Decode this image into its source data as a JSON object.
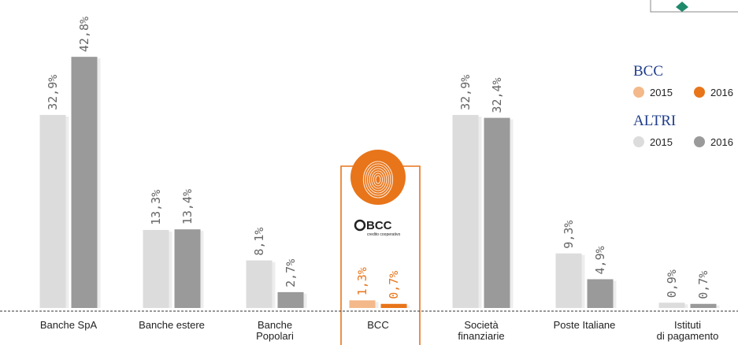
{
  "chart_data": {
    "type": "bar",
    "categories": [
      [
        "Banche SpA"
      ],
      [
        "Banche estere"
      ],
      [
        "Banche",
        "Popolari"
      ],
      [
        "BCC"
      ],
      [
        "Società",
        "finanziarie"
      ],
      [
        "Poste Italiane"
      ],
      [
        "Istituti",
        "di pagamento"
      ]
    ],
    "series": [
      {
        "name": "2015",
        "values": [
          32.9,
          13.3,
          8.1,
          1.3,
          32.9,
          9.3,
          0.9
        ],
        "labels": [
          "32,9%",
          "13,3%",
          "8,1%",
          "1,3%",
          "32,9%",
          "9,3%",
          "0,9%"
        ]
      },
      {
        "name": "2016",
        "values": [
          42.8,
          13.4,
          2.7,
          0.7,
          32.4,
          4.9,
          0.7
        ],
        "labels": [
          "42,8%",
          "13,4%",
          "2,7%",
          "0,7%",
          "32,4%",
          "4,9%",
          "0,7%"
        ]
      }
    ],
    "highlight_category": 3,
    "ylim": [
      0,
      45
    ],
    "colors": {
      "altri_2015": "#dcdcdc",
      "altri_2016": "#9a9a9a",
      "bcc_2015": "#f4b98a",
      "bcc_2016": "#e8751a",
      "label_gray": "#666666",
      "label_orange": "#e8751a",
      "frame_orange": "#e8751a"
    },
    "legend": {
      "placement": "right",
      "groups": [
        {
          "title": "BCC",
          "items": [
            "2015",
            "2016"
          ]
        },
        {
          "title": "ALTRI",
          "items": [
            "2015",
            "2016"
          ]
        }
      ]
    },
    "logo": {
      "text": "BCC",
      "subtext": "credito cooperativo"
    }
  }
}
